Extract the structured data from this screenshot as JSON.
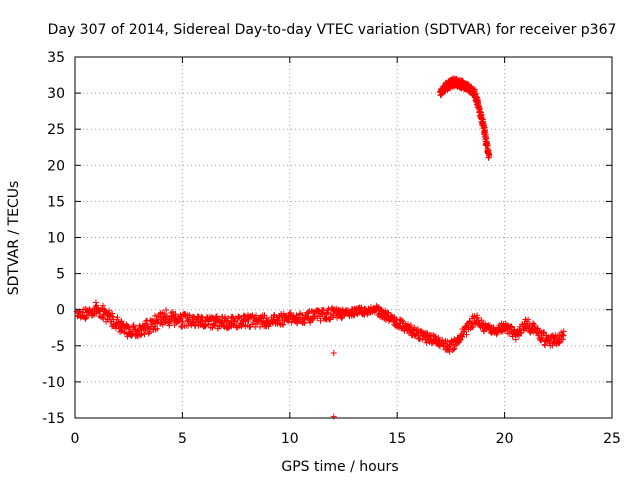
{
  "chart_data": {
    "type": "scatter",
    "title": "Day 307 of 2014, Sidereal Day-to-day VTEC variation (SDTVAR) for receiver p367",
    "xlabel": "GPS time / hours",
    "ylabel": "SDTVAR / TECUs",
    "xlim": [
      0,
      25
    ],
    "ylim": [
      -15,
      35
    ],
    "x_ticks": [
      0,
      5,
      10,
      15,
      20,
      25
    ],
    "x_tick_labels": [
      "0",
      "5",
      "10",
      "15",
      "20",
      "25"
    ],
    "y_ticks": [
      -15,
      -10,
      -5,
      0,
      5,
      10,
      15,
      20,
      25,
      30,
      35
    ],
    "y_tick_labels": [
      "-15",
      "-10",
      "-5",
      "0",
      "5",
      "10",
      "15",
      "20",
      "25",
      "30",
      "35"
    ],
    "grid": true,
    "marker": "+",
    "series": [
      {
        "name": "SDTVAR",
        "color": "#ff0000",
        "trace": [
          {
            "x": 0.1,
            "y": -0.5,
            "spread": 0.4
          },
          {
            "x": 0.5,
            "y": -0.6,
            "spread": 0.8
          },
          {
            "x": 1.0,
            "y": 0.2,
            "spread": 0.9
          },
          {
            "x": 1.5,
            "y": -0.8,
            "spread": 1.0
          },
          {
            "x": 2.0,
            "y": -2.0,
            "spread": 1.0
          },
          {
            "x": 2.5,
            "y": -3.0,
            "spread": 0.8
          },
          {
            "x": 3.0,
            "y": -2.8,
            "spread": 0.9
          },
          {
            "x": 3.5,
            "y": -2.3,
            "spread": 1.0
          },
          {
            "x": 4.0,
            "y": -1.3,
            "spread": 1.2
          },
          {
            "x": 4.5,
            "y": -1.0,
            "spread": 1.2
          },
          {
            "x": 5.0,
            "y": -1.5,
            "spread": 1.0
          },
          {
            "x": 6.0,
            "y": -1.8,
            "spread": 0.9
          },
          {
            "x": 7.0,
            "y": -1.7,
            "spread": 0.9
          },
          {
            "x": 8.0,
            "y": -1.5,
            "spread": 0.9
          },
          {
            "x": 9.0,
            "y": -1.6,
            "spread": 0.8
          },
          {
            "x": 10.0,
            "y": -1.2,
            "spread": 0.8
          },
          {
            "x": 11.0,
            "y": -1.0,
            "spread": 0.8
          },
          {
            "x": 12.0,
            "y": -0.5,
            "spread": 0.8
          },
          {
            "x": 12.5,
            "y": -0.6,
            "spread": 0.6
          },
          {
            "x": 13.0,
            "y": -0.3,
            "spread": 0.5
          },
          {
            "x": 14.0,
            "y": 0.0,
            "spread": 0.6
          },
          {
            "x": 14.5,
            "y": -0.8,
            "spread": 0.7
          },
          {
            "x": 15.0,
            "y": -1.8,
            "spread": 0.7
          },
          {
            "x": 15.5,
            "y": -2.5,
            "spread": 0.7
          },
          {
            "x": 16.0,
            "y": -3.5,
            "spread": 0.7
          },
          {
            "x": 16.5,
            "y": -4.0,
            "spread": 0.7
          },
          {
            "x": 17.0,
            "y": -4.5,
            "spread": 0.7
          },
          {
            "x": 17.5,
            "y": -5.2,
            "spread": 0.8
          },
          {
            "x": 18.0,
            "y": -3.5,
            "spread": 0.9
          },
          {
            "x": 18.4,
            "y": -2.0,
            "spread": 0.8
          },
          {
            "x": 18.7,
            "y": -1.2,
            "spread": 0.7
          },
          {
            "x": 19.0,
            "y": -2.5,
            "spread": 0.7
          },
          {
            "x": 19.5,
            "y": -3.0,
            "spread": 0.6
          },
          {
            "x": 20.0,
            "y": -2.3,
            "spread": 0.6
          },
          {
            "x": 20.5,
            "y": -3.5,
            "spread": 0.8
          },
          {
            "x": 21.0,
            "y": -2.0,
            "spread": 0.8
          },
          {
            "x": 21.5,
            "y": -3.0,
            "spread": 0.8
          },
          {
            "x": 22.0,
            "y": -4.5,
            "spread": 0.9
          },
          {
            "x": 22.5,
            "y": -4.0,
            "spread": 0.8
          },
          {
            "x": 22.8,
            "y": -3.4,
            "spread": 0.5
          }
        ],
        "trace2": [
          {
            "x": 17.0,
            "y": 30.0,
            "spread": 0.4
          },
          {
            "x": 17.3,
            "y": 31.0,
            "spread": 0.6
          },
          {
            "x": 17.6,
            "y": 31.5,
            "spread": 0.6
          },
          {
            "x": 18.0,
            "y": 31.2,
            "spread": 0.6
          },
          {
            "x": 18.3,
            "y": 30.8,
            "spread": 0.5
          },
          {
            "x": 18.6,
            "y": 30.0,
            "spread": 0.5
          },
          {
            "x": 18.8,
            "y": 28.0,
            "spread": 0.5
          },
          {
            "x": 19.0,
            "y": 25.5,
            "spread": 0.6
          },
          {
            "x": 19.2,
            "y": 22.5,
            "spread": 0.6
          },
          {
            "x": 19.3,
            "y": 21.0,
            "spread": 0.4
          }
        ],
        "outliers": [
          {
            "x": 12.05,
            "y": -6.0
          },
          {
            "x": 12.05,
            "y": -14.8
          }
        ]
      }
    ]
  }
}
